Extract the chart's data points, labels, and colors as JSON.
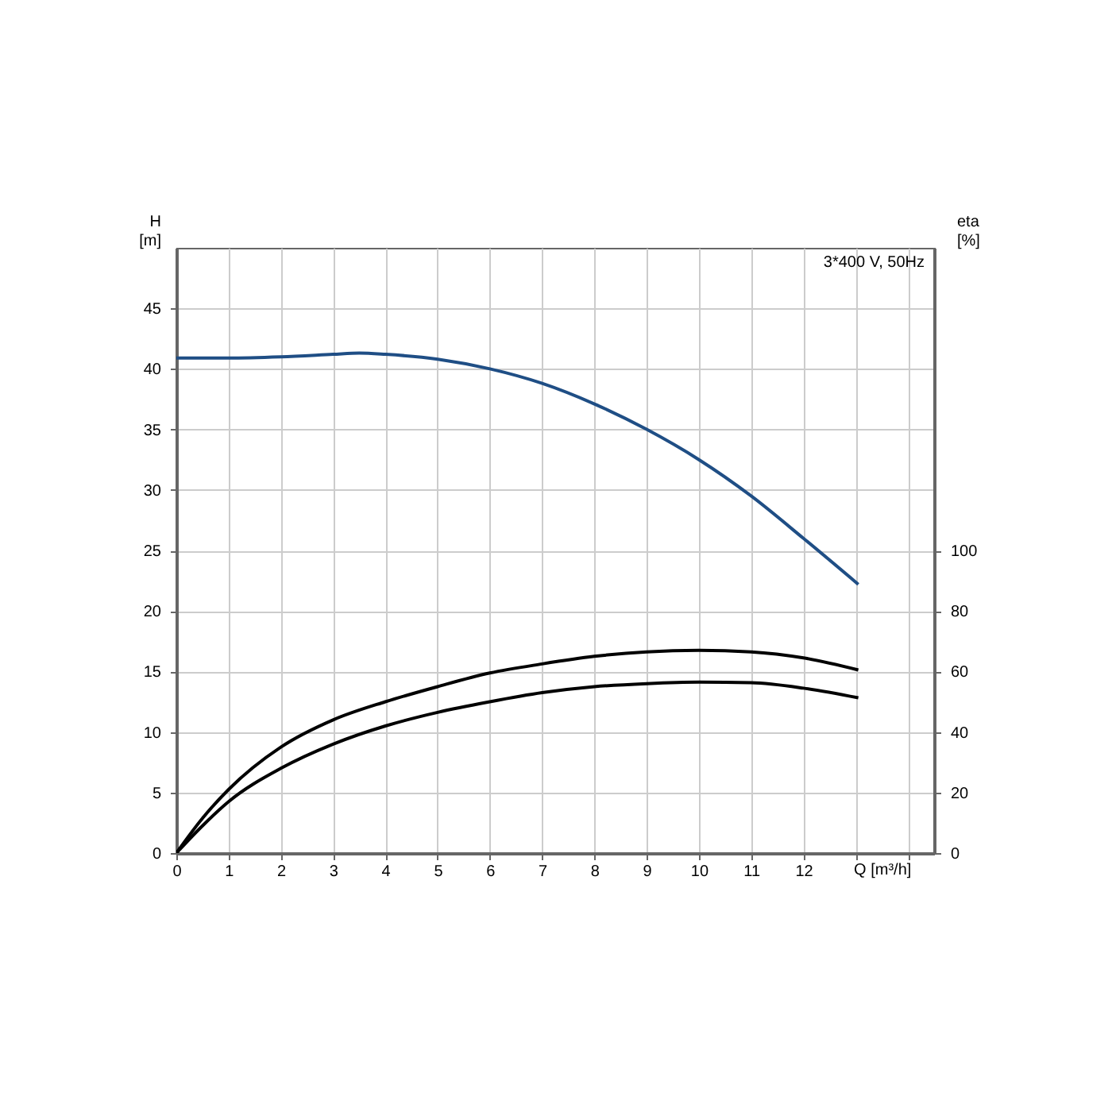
{
  "chart_data": {
    "type": "line",
    "ylabel": "H\n[m]",
    "y2label": "eta\n[%]",
    "xlabel": "Q [m³/h]",
    "annotations": [
      "3*400 V, 50Hz"
    ],
    "xlim": [
      0,
      14.5
    ],
    "xticks": [
      0,
      1,
      2,
      3,
      4,
      5,
      6,
      7,
      8,
      9,
      10,
      11,
      12,
      {
        "value": 13,
        "label": null
      },
      {
        "value": 14,
        "label": null
      }
    ],
    "ylim": [
      0,
      50
    ],
    "yticks": [
      0,
      5,
      10,
      15,
      20,
      25,
      30,
      35,
      40,
      45
    ],
    "y2lim": [
      0,
      200
    ],
    "y2ticks": [
      0,
      20,
      40,
      60,
      80,
      100
    ],
    "grid": true,
    "series": [
      {
        "color": "#1f4e85",
        "x": [
          0,
          1,
          2,
          3,
          3.5,
          4,
          5,
          6,
          7,
          8,
          9,
          10,
          11,
          12,
          13.05
        ],
        "values": [
          40.9,
          40.9,
          41.0,
          41.2,
          41.3,
          41.2,
          40.8,
          40.0,
          38.8,
          37.1,
          35.0,
          32.5,
          29.5,
          26.0,
          22.2
        ]
      },
      {
        "color": "#000000",
        "axis": "y2",
        "x": [
          0,
          0.5,
          1,
          2,
          3,
          4,
          5,
          6,
          7,
          8,
          9,
          10,
          11,
          12,
          13.05
        ],
        "values": [
          0,
          11.5,
          21,
          35,
          44,
          50,
          55,
          59.5,
          62.5,
          65,
          66.5,
          67,
          66.5,
          64.5,
          60.5
        ]
      },
      {
        "color": "#000000",
        "axis": "y2",
        "x": [
          0,
          0.5,
          1,
          2,
          3,
          4,
          5,
          6,
          7,
          8,
          9,
          10,
          11,
          12,
          13.05
        ],
        "values": [
          0,
          9,
          17,
          28,
          36,
          42,
          46.5,
          50,
          53,
          55,
          56,
          56.5,
          56.3,
          54.5,
          51.3
        ]
      }
    ]
  }
}
